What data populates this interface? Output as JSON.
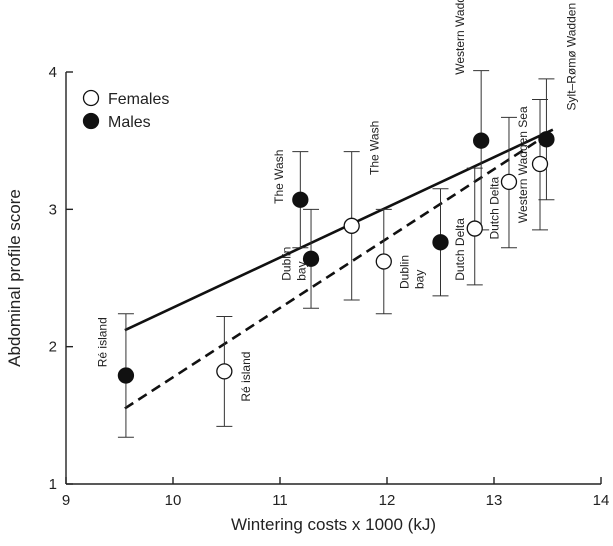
{
  "chart_data": {
    "type": "scatter",
    "xlabel": "Wintering costs x 1000 (kJ)",
    "ylabel": "Abdominal profile score",
    "xlim": [
      9,
      14
    ],
    "ylim": [
      1,
      4
    ],
    "xticks": [
      "9",
      "10",
      "11",
      "12",
      "13",
      "14"
    ],
    "yticks": [
      "1",
      "2",
      "3",
      "4"
    ],
    "legend_position": "top-left",
    "series": [
      {
        "name": "Females",
        "marker": "open-circle",
        "line_style": "dashed",
        "trend": [
          [
            9.55,
            1.55
          ],
          [
            13.55,
            3.57
          ]
        ],
        "points": [
          {
            "label": "Ré island",
            "x": 10.48,
            "y": 1.82,
            "err": [
              1.42,
              2.22
            ]
          },
          {
            "label": "The Wash",
            "x": 11.67,
            "y": 2.88,
            "err": [
              2.34,
              3.42
            ]
          },
          {
            "label": "Dublin bay",
            "x": 11.97,
            "y": 2.62,
            "err": [
              2.24,
              3.0
            ]
          },
          {
            "label": "Dutch Delta",
            "x": 12.82,
            "y": 2.86,
            "err": [
              2.45,
              3.3
            ]
          },
          {
            "label": "Dutch Delta",
            "x": 13.14,
            "y": 3.2,
            "err": [
              2.72,
              3.67
            ]
          },
          {
            "label": "Western Wadden Sea",
            "x": 13.43,
            "y": 3.33,
            "err": [
              2.85,
              3.8
            ]
          }
        ]
      },
      {
        "name": "Males",
        "marker": "filled-circle",
        "line_style": "solid",
        "trend": [
          [
            9.55,
            2.12
          ],
          [
            13.55,
            3.58
          ]
        ],
        "points": [
          {
            "label": "Ré island",
            "x": 9.56,
            "y": 1.79,
            "err": [
              1.34,
              2.24
            ]
          },
          {
            "label": "The Wash",
            "x": 11.19,
            "y": 3.07,
            "err": [
              2.72,
              3.42
            ]
          },
          {
            "label": "Dublin bay",
            "x": 11.29,
            "y": 2.64,
            "err": [
              2.28,
              3.0
            ]
          },
          {
            "label": "Dutch Delta",
            "x": 12.5,
            "y": 2.76,
            "err": [
              2.37,
              3.15
            ]
          },
          {
            "label": "Western Wadden Sea",
            "x": 12.88,
            "y": 3.5,
            "err": [
              2.85,
              4.01
            ]
          },
          {
            "label": "Sylt–Rømø Wadden Sea",
            "x": 13.49,
            "y": 3.51,
            "err": [
              3.07,
              3.95
            ]
          }
        ]
      }
    ]
  },
  "annotations": [
    {
      "text": "Ré island",
      "x": 9.38,
      "y": 1.85
    },
    {
      "text": "Ré island",
      "x": 10.72,
      "y": 1.6
    },
    {
      "text": "The Wash",
      "x": 11.03,
      "y": 3.04
    },
    {
      "text": "Dublin",
      "x": 11.1,
      "y": 2.48
    },
    {
      "text": "bay",
      "x": 11.24,
      "y": 2.48
    },
    {
      "text": "The Wash",
      "x": 11.92,
      "y": 3.25
    },
    {
      "text": "Dublin",
      "x": 12.2,
      "y": 2.42
    },
    {
      "text": "bay",
      "x": 12.34,
      "y": 2.42
    },
    {
      "text": "Dutch Delta",
      "x": 12.72,
      "y": 2.48
    },
    {
      "text": "Western Wadden Sea",
      "x": 12.72,
      "y": 3.98
    },
    {
      "text": "Dutch Delta",
      "x": 13.04,
      "y": 2.78
    },
    {
      "text": "Western Wadden Sea",
      "x": 13.31,
      "y": 2.9
    },
    {
      "text": "Sylt–Rømø Wadden Sea",
      "x": 13.76,
      "y": 3.72
    }
  ]
}
